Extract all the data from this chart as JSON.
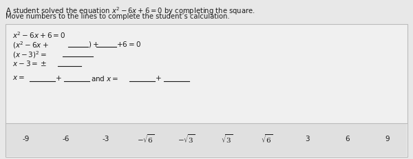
{
  "bg_color": "#e8e8e8",
  "box_bg": "#f0f0f0",
  "box_bottom_bg": "#e0e0e0",
  "title_line1": "A student solved the equation $x^2 - 6x + 6 = 0$ by completing the square.",
  "title_line2": "Move numbers to the lines to complete the student’s calculation.",
  "text_color": "#1a1a1a",
  "box_border": "#bbbbbb",
  "number_tiles": [
    "-9",
    "-6",
    "-3",
    "$-\\sqrt{6}$",
    "$-\\sqrt{3}$",
    "$\\sqrt{3}$",
    "$\\sqrt{6}$",
    "3",
    "6",
    "9"
  ],
  "fig_width": 6.0,
  "fig_height": 2.32,
  "dpi": 100
}
